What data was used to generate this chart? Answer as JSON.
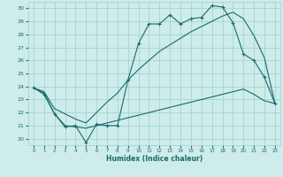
{
  "xlabel": "Humidex (Indice chaleur)",
  "xlim": [
    -0.5,
    23.5
  ],
  "ylim": [
    19.5,
    30.5
  ],
  "yticks": [
    20,
    21,
    22,
    23,
    24,
    25,
    26,
    27,
    28,
    29,
    30
  ],
  "xticks": [
    0,
    1,
    2,
    3,
    4,
    5,
    6,
    7,
    8,
    9,
    10,
    11,
    12,
    13,
    14,
    15,
    16,
    17,
    18,
    19,
    20,
    21,
    22,
    23
  ],
  "bg_color": "#cdecea",
  "grid_color": "#9ecfcd",
  "line_color": "#1a6b6b",
  "curve1_x": [
    0,
    1,
    2,
    3,
    4,
    5,
    6,
    7,
    8,
    9,
    10,
    11,
    12,
    13,
    14,
    15,
    16,
    17,
    18,
    19,
    20,
    21,
    22,
    23
  ],
  "curve1_y": [
    23.9,
    23.4,
    21.9,
    20.9,
    21.0,
    19.7,
    21.1,
    21.0,
    21.0,
    24.5,
    27.3,
    28.8,
    28.8,
    29.5,
    28.8,
    29.2,
    29.3,
    30.2,
    30.1,
    28.9,
    26.5,
    26.0,
    24.7,
    22.7
  ],
  "curve2_x": [
    0,
    1,
    2,
    3,
    4,
    5,
    6,
    7,
    8,
    9,
    10,
    11,
    12,
    13,
    14,
    15,
    16,
    17,
    18,
    19,
    20,
    21,
    22,
    23
  ],
  "curve2_y": [
    23.9,
    23.6,
    22.3,
    21.9,
    21.5,
    21.2,
    22.0,
    22.8,
    23.5,
    24.5,
    25.3,
    26.0,
    26.7,
    27.2,
    27.7,
    28.2,
    28.6,
    29.0,
    29.4,
    29.7,
    29.2,
    27.9,
    26.2,
    22.7
  ],
  "curve3_x": [
    0,
    1,
    2,
    3,
    4,
    5,
    6,
    7,
    8,
    9,
    10,
    11,
    12,
    13,
    14,
    15,
    16,
    17,
    18,
    19,
    20,
    21,
    22,
    23
  ],
  "curve3_y": [
    23.9,
    23.5,
    21.9,
    21.0,
    20.9,
    20.8,
    21.0,
    21.2,
    21.4,
    21.6,
    21.8,
    22.0,
    22.2,
    22.4,
    22.6,
    22.8,
    23.0,
    23.2,
    23.4,
    23.6,
    23.8,
    23.4,
    22.9,
    22.7
  ]
}
